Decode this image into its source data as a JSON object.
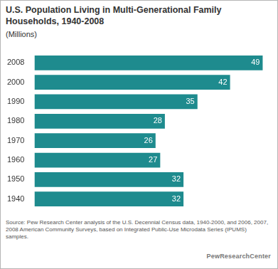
{
  "chart_data": {
    "type": "bar",
    "title": "U.S. Population Living in Multi-Generational Family Households, 1940-2008",
    "subtitle": "(Millions)",
    "categories": [
      "2008",
      "2000",
      "1990",
      "1980",
      "1970",
      "1960",
      "1950",
      "1940"
    ],
    "values": [
      49,
      42,
      35,
      28,
      26,
      27,
      32,
      32
    ],
    "color": "#1e8b8e",
    "orientation": "horizontal",
    "xlim": [
      0,
      50
    ],
    "grid": false,
    "tick_labels": "y",
    "data_labels": true,
    "legend": false,
    "source": "Source: Pew Research Center analysis of the U.S. Decennial Census data, 1940-2000, and 2006, 2007, 2008 American Community Surveys, based on Integrated Public-Use Microdata Series (IPUMS) samples.",
    "credit": "PewResearchCenter"
  }
}
